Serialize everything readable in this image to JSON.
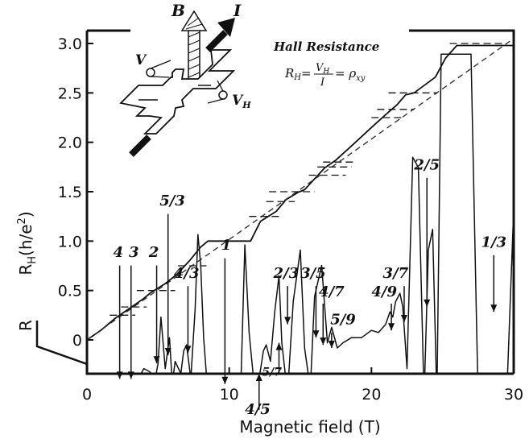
{
  "chart_data": {
    "type": "line",
    "title": "",
    "xlabel": "Magnetic field (T)",
    "ylabel_main": "R",
    "ylabel_sub": "H",
    "ylabel_rest": "(h/e",
    "ylabel_sup": "2",
    "ylabel_close": ")",
    "rlabel": "R",
    "xlim": [
      0,
      30
    ],
    "ylim": [
      0,
      3.1
    ],
    "xticks": [
      0,
      10,
      20,
      30
    ],
    "yticks": [
      0,
      0.5,
      1.0,
      1.5,
      2.0,
      2.5,
      3.0
    ],
    "ytick_labels": [
      "0",
      "0.5",
      "1.0",
      "1.5",
      "2.0",
      "2.5",
      "3.0"
    ],
    "grid": false,
    "legend": "none",
    "series": [
      {
        "kind": "hall-resistance",
        "x": [
          0.0,
          1.0,
          2.0,
          3.0,
          4.0,
          4.5,
          5.5,
          6.3,
          7.2,
          8.0,
          8.5,
          11.5,
          12.2,
          13.3,
          14.0,
          14.8,
          15.3,
          16.0,
          16.7,
          17.5,
          18.5,
          20.0,
          21.0,
          21.8,
          22.4,
          23.0,
          24.5,
          25.2,
          26.0,
          30.0
        ],
        "y": [
          0.0,
          0.1,
          0.22,
          0.32,
          0.42,
          0.48,
          0.57,
          0.66,
          0.8,
          0.94,
          1.0,
          1.0,
          1.2,
          1.3,
          1.42,
          1.49,
          1.52,
          1.63,
          1.74,
          1.82,
          1.95,
          2.15,
          2.28,
          2.38,
          2.48,
          2.5,
          2.66,
          2.85,
          2.98,
          2.98
        ]
      },
      {
        "kind": "classical-line",
        "x": [
          0,
          30
        ],
        "y": [
          0,
          3.05
        ]
      },
      {
        "kind": "longitudinal-resistance",
        "x": [
          0.0,
          0.6,
          1.0,
          1.4,
          1.8,
          2.2,
          2.6,
          3.0,
          3.4,
          3.8,
          4.0,
          4.4,
          4.8,
          5.0,
          5.2,
          5.5,
          5.8,
          6.0,
          6.2,
          6.6,
          6.8,
          7.0,
          7.3,
          7.6,
          7.8,
          8.0,
          8.2,
          8.5,
          9.0,
          10.0,
          10.8,
          11.1,
          11.4,
          11.8,
          12.1,
          12.4,
          12.6,
          12.9,
          13.2,
          13.5,
          13.7,
          14.1,
          14.5,
          15.0,
          15.3,
          15.7,
          16.0,
          16.5,
          16.9,
          17.2,
          17.6,
          18.0,
          18.6,
          19.3,
          20.0,
          20.5,
          21.0,
          21.3,
          21.5,
          21.7,
          22.0,
          22.2,
          22.5,
          22.9,
          23.3,
          23.7,
          24.0,
          24.3,
          24.6,
          24.9,
          25.2,
          26.0,
          27.0,
          27.5,
          28.5,
          29.5,
          30.0
        ],
        "r": [
          -0.25,
          -0.24,
          -0.22,
          -0.19,
          -0.2,
          -0.15,
          -0.12,
          -0.08,
          -0.06,
          0.0,
          0.05,
          0.02,
          -0.05,
          0.1,
          0.55,
          0.05,
          0.35,
          -0.1,
          0.12,
          0.0,
          0.22,
          0.28,
          -0.05,
          0.62,
          1.35,
          1.05,
          0.35,
          -0.2,
          -0.25,
          -0.25,
          -0.2,
          1.25,
          0.4,
          -0.18,
          -0.05,
          0.22,
          0.28,
          0.12,
          0.6,
          0.95,
          0.3,
          -0.2,
          0.7,
          1.2,
          0.25,
          -0.15,
          0.75,
          1.05,
          0.3,
          0.45,
          0.25,
          0.3,
          0.35,
          0.35,
          0.42,
          0.4,
          0.48,
          0.6,
          0.55,
          0.7,
          0.78,
          0.65,
          0.05,
          2.1,
          2.0,
          -0.25,
          1.2,
          1.4,
          -0.25,
          3.1,
          3.1,
          3.1,
          3.1,
          -0.25,
          -0.25,
          -0.25,
          1.6
        ]
      }
    ],
    "plateaus": [
      {
        "label": "2/5",
        "y": 2.5,
        "x0": 21.2,
        "x1": 24.6
      },
      {
        "label": "3/7",
        "y": 2.333,
        "x0": 20.4,
        "x1": 23.0
      },
      {
        "label": "4/9",
        "y": 2.25,
        "x0": 20.0,
        "x1": 22.2
      },
      {
        "label": "3/5",
        "y": 1.667,
        "x0": 15.6,
        "x1": 18.2
      },
      {
        "label": "4/7",
        "y": 1.75,
        "x0": 16.2,
        "x1": 18.6
      },
      {
        "label": "5/9",
        "y": 1.8,
        "x0": 16.6,
        "x1": 18.8
      },
      {
        "label": "2/3",
        "y": 1.5,
        "x0": 12.8,
        "x1": 16.0
      },
      {
        "label": "5/7",
        "y": 1.4,
        "x0": 12.6,
        "x1": 14.6
      },
      {
        "label": "4/5",
        "y": 1.25,
        "x0": 11.4,
        "x1": 13.6
      },
      {
        "label": "1/3",
        "y": 3.0,
        "x0": 25.5,
        "x1": 29.5
      },
      {
        "label": "4",
        "y": 0.25,
        "x0": 1.6,
        "x1": 3.4
      },
      {
        "label": "3",
        "y": 0.333,
        "x0": 2.4,
        "x1": 4.2
      },
      {
        "label": "2",
        "y": 0.5,
        "x0": 3.5,
        "x1": 6.2
      },
      {
        "label": "4/3",
        "y": 0.75,
        "x0": 6.4,
        "x1": 8.4
      }
    ],
    "annotations": [
      {
        "label": "4",
        "arrow_x": 2.3,
        "arrow_tip": -0.05,
        "arrow_tail": 1.05,
        "text_x": 2.2,
        "text_y": 1.1,
        "dir": "down"
      },
      {
        "label": "3",
        "arrow_x": 3.1,
        "arrow_tip": -0.05,
        "arrow_tail": 1.05,
        "text_x": 3.3,
        "text_y": 1.1,
        "dir": "down"
      },
      {
        "label": "2",
        "arrow_x": 4.9,
        "arrow_tip": 0.1,
        "arrow_tail": 1.05,
        "text_x": 4.7,
        "text_y": 1.1,
        "dir": "down"
      },
      {
        "label": "5/3",
        "arrow_x": 5.7,
        "arrow_tip": 0.18,
        "arrow_tail": 1.55,
        "text_x": 6.0,
        "text_y": 1.6,
        "dir": "down"
      },
      {
        "label": "4/3",
        "arrow_x": 7.1,
        "arrow_tip": 0.2,
        "arrow_tail": 0.85,
        "text_x": 7.0,
        "text_y": 0.9,
        "dir": "down"
      },
      {
        "label": "1",
        "arrow_x": 9.7,
        "arrow_tip": -0.1,
        "arrow_tail": 1.12,
        "text_x": 9.8,
        "text_y": 1.17,
        "dir": "down"
      },
      {
        "label": "2/3",
        "arrow_x": 14.1,
        "arrow_tip": 0.48,
        "arrow_tail": 0.85,
        "text_x": 14.0,
        "text_y": 0.9,
        "dir": "down"
      },
      {
        "label": "5/7",
        "arrow_x": 13.5,
        "arrow_tip": 0.3,
        "arrow_tail": 0.0,
        "text_x": 13.0,
        "text_y": -0.05,
        "dir": "up"
      },
      {
        "label": "4/5",
        "arrow_x": 12.1,
        "arrow_tip": 0.0,
        "arrow_tail": -0.35,
        "text_x": 12.0,
        "text_y": -0.42,
        "dir": "up"
      },
      {
        "label": "3/5",
        "arrow_x": 16.1,
        "arrow_tip": 0.35,
        "arrow_tail": 0.85,
        "text_x": 15.9,
        "text_y": 0.9,
        "dir": "down"
      },
      {
        "label": "4/7",
        "arrow_x": 16.6,
        "arrow_tip": 0.28,
        "arrow_tail": 0.68,
        "text_x": 17.2,
        "text_y": 0.72,
        "dir": "down"
      },
      {
        "label": "5/9",
        "arrow_x": 17.2,
        "arrow_tip": 0.25,
        "arrow_tail": 0.4,
        "text_x": 18.0,
        "text_y": 0.45,
        "dir": "down"
      },
      {
        "label": "4/9",
        "arrow_x": 21.4,
        "arrow_tip": 0.42,
        "arrow_tail": 0.68,
        "text_x": 20.9,
        "text_y": 0.72,
        "dir": "down"
      },
      {
        "label": "3/7",
        "arrow_x": 22.3,
        "arrow_tip": 0.5,
        "arrow_tail": 0.85,
        "text_x": 21.7,
        "text_y": 0.9,
        "dir": "down"
      },
      {
        "label": "2/5",
        "arrow_x": 23.9,
        "arrow_tip": 0.65,
        "arrow_tail": 1.9,
        "text_x": 23.9,
        "text_y": 1.95,
        "dir": "down"
      },
      {
        "label": "1/3",
        "arrow_x": 28.6,
        "arrow_tip": 0.6,
        "arrow_tail": 1.15,
        "text_x": 28.6,
        "text_y": 1.2,
        "dir": "down"
      }
    ]
  },
  "inset": {
    "b_label": "B",
    "i_label": "I",
    "v_label": "V",
    "vh_label": "V",
    "vh_sub": "H"
  },
  "hall": {
    "title": "Hall Resistance",
    "lhs": "R",
    "lhs_sub": "H",
    "num": "V",
    "num_sub": "H",
    "den": "I",
    "rhs": "ρ",
    "rhs_sub": "xy"
  },
  "colors": {
    "ink": "#111111",
    "dashed": "#333333",
    "background": "#ffffff"
  }
}
